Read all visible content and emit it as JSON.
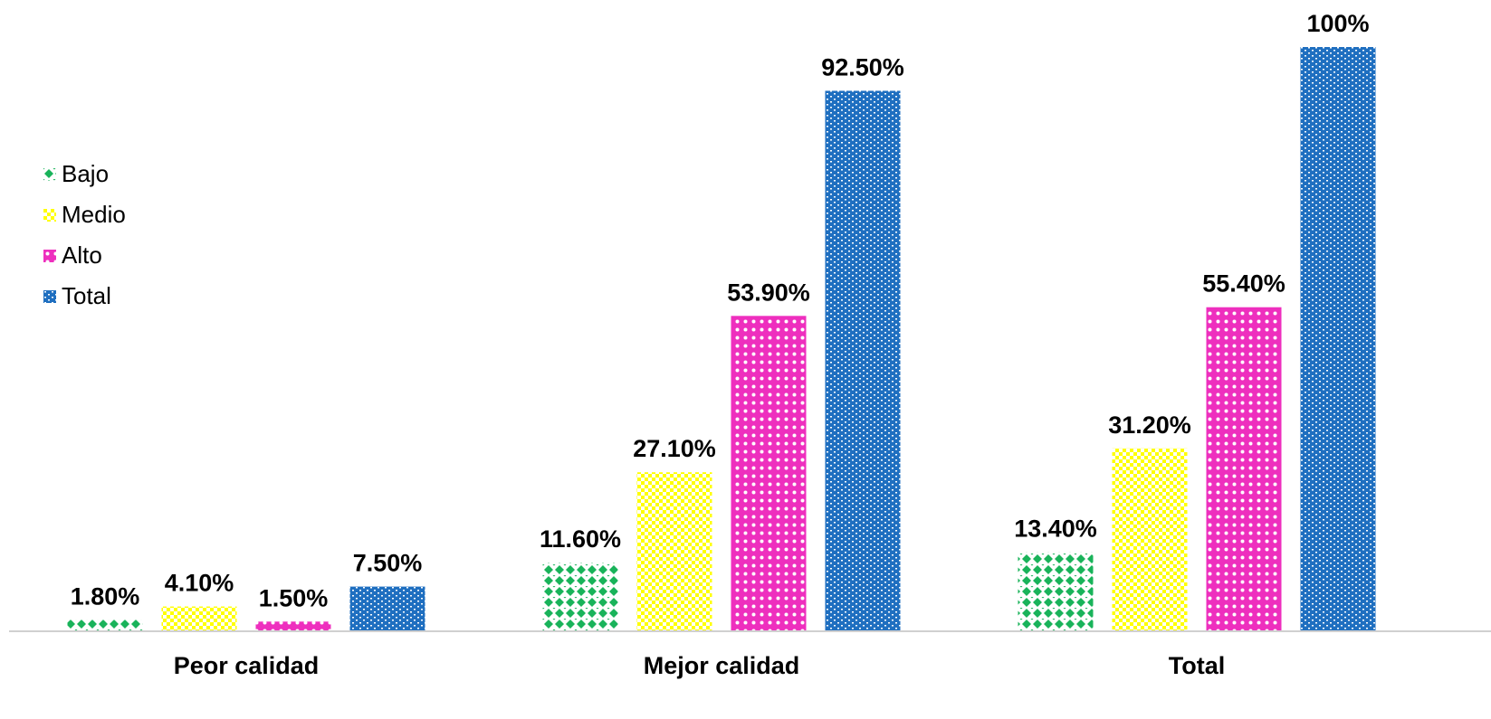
{
  "chart_data": {
    "type": "bar",
    "categories": [
      "Peor calidad",
      "Mejor calidad",
      "Total"
    ],
    "series": [
      {
        "name": "Bajo",
        "values": [
          1.8,
          11.6,
          13.4
        ],
        "labels": [
          "1.80%",
          "11.60%",
          "13.40%"
        ],
        "color": "#19b35a",
        "pattern": "diamonds"
      },
      {
        "name": "Medio",
        "values": [
          4.1,
          27.1,
          31.2
        ],
        "labels": [
          "4.10%",
          "27.10%",
          "31.20%"
        ],
        "color": "#ffff00",
        "pattern": "checker"
      },
      {
        "name": "Alto",
        "values": [
          1.5,
          53.9,
          55.4
        ],
        "labels": [
          "1.50%",
          "53.90%",
          "55.40%"
        ],
        "color": "#ee2fbe",
        "pattern": "circles"
      },
      {
        "name": "Total",
        "values": [
          7.5,
          92.5,
          100
        ],
        "labels": [
          "7.50%",
          "92.50%",
          "100%"
        ],
        "color": "#1f6fc0",
        "pattern": "bricks"
      }
    ],
    "ylim": [
      0,
      100
    ],
    "grid": false,
    "legend": "left",
    "title": "",
    "xlabel": "",
    "ylabel": ""
  }
}
